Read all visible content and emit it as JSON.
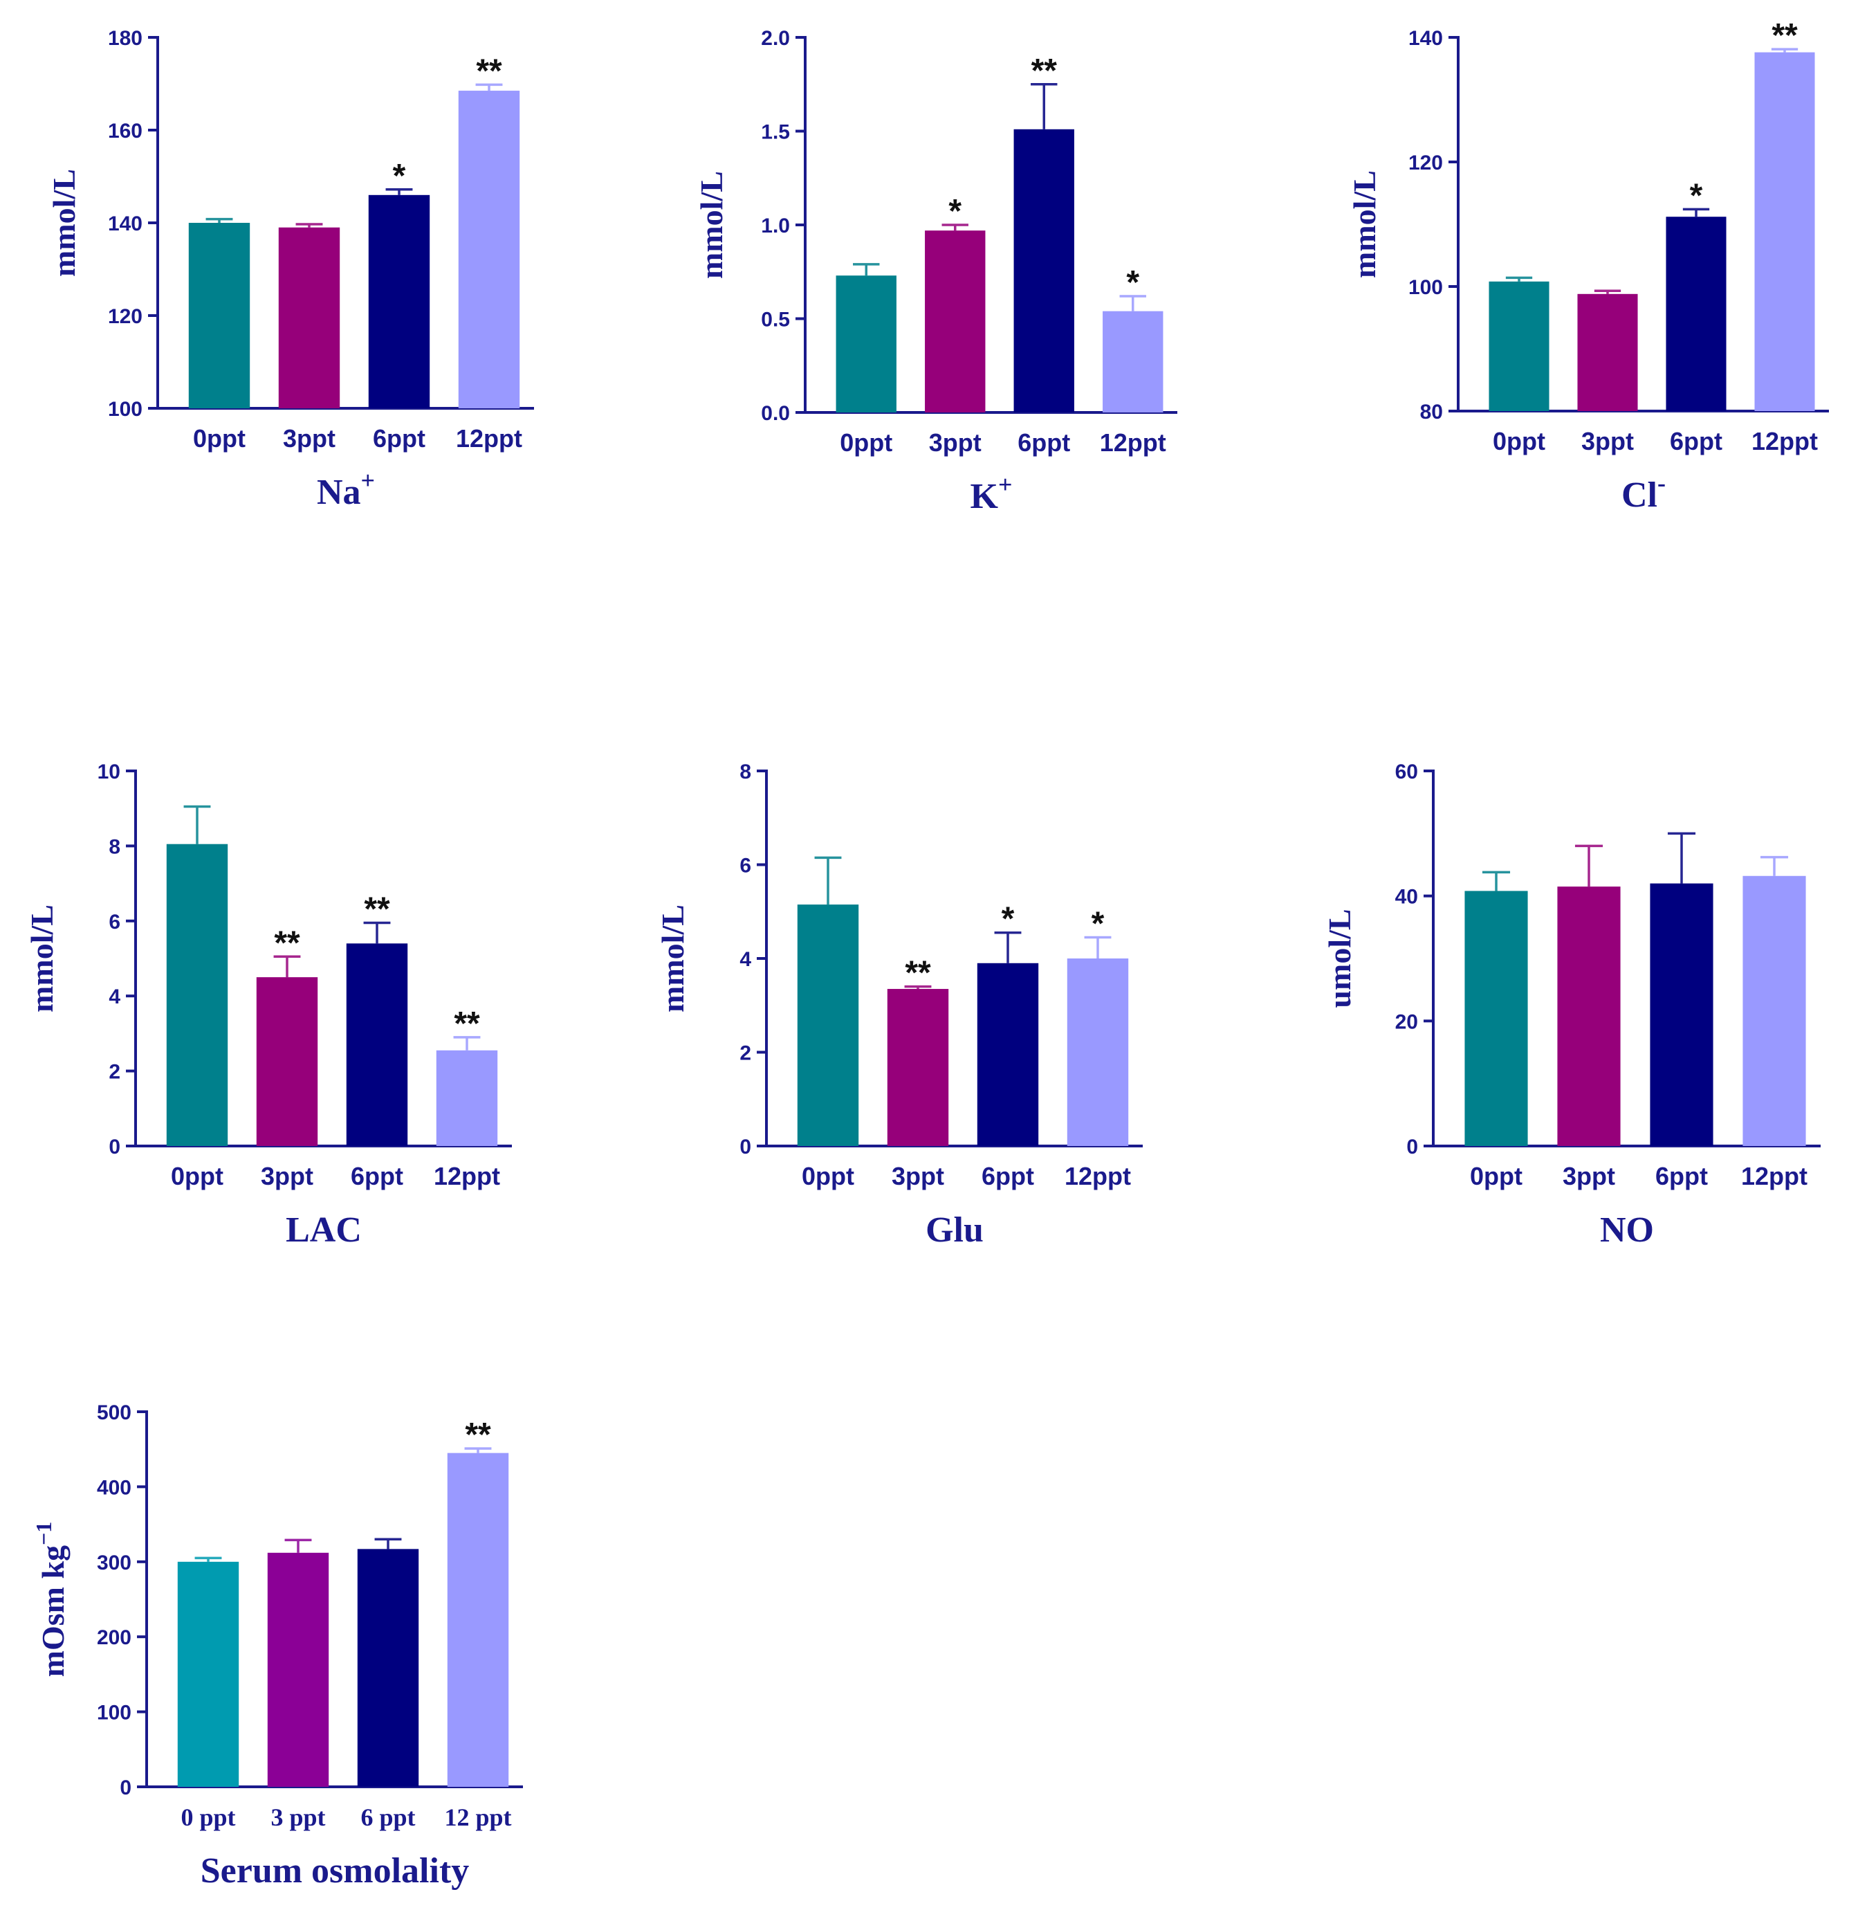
{
  "chart_data": [
    {
      "type": "bar",
      "xlabel": "Na",
      "xlabel_sup": "+",
      "ylabel": "mmol/L",
      "ylim": [
        100,
        180
      ],
      "yticks": [
        100,
        120,
        140,
        160,
        180
      ],
      "ytick_labels": [
        "100",
        "120",
        "140",
        "160",
        "180"
      ],
      "categories": [
        "0ppt",
        "3ppt",
        "6ppt",
        "12ppt"
      ],
      "values": [
        140,
        139,
        146,
        168.5
      ],
      "errors": [
        0.8,
        0.7,
        1.2,
        1.3
      ],
      "significance": [
        "",
        "",
        "*",
        "**"
      ],
      "colors": [
        "#00808c",
        "#96007a",
        "#00007f",
        "#9999ff"
      ]
    },
    {
      "type": "bar",
      "xlabel": "K",
      "xlabel_sup": "+",
      "ylabel": "mmol/L",
      "ylim": [
        0,
        2
      ],
      "yticks": [
        0,
        0.5,
        1,
        1.5,
        2
      ],
      "ytick_labels": [
        "0.0",
        "0.5",
        "1.0",
        "1.5",
        "2.0"
      ],
      "categories": [
        "0ppt",
        "3ppt",
        "6ppt",
        "12ppt"
      ],
      "values": [
        0.73,
        0.97,
        1.51,
        0.54
      ],
      "errors": [
        0.06,
        0.03,
        0.24,
        0.08
      ],
      "significance": [
        "",
        "*",
        "**",
        "*"
      ],
      "colors": [
        "#00808c",
        "#96007a",
        "#00007f",
        "#9999ff"
      ]
    },
    {
      "type": "bar",
      "xlabel": "Cl",
      "xlabel_sup": "-",
      "ylabel": "mmol/L",
      "ylim": [
        80,
        140
      ],
      "yticks": [
        80,
        100,
        120,
        140
      ],
      "ytick_labels": [
        "80",
        "100",
        "120",
        "140"
      ],
      "categories": [
        "0ppt",
        "3ppt",
        "6ppt",
        "12ppt"
      ],
      "values": [
        100.8,
        98.8,
        111.2,
        137.6
      ],
      "errors": [
        0.6,
        0.5,
        1.2,
        0.5
      ],
      "significance": [
        "",
        "",
        "*",
        "**"
      ],
      "colors": [
        "#00808c",
        "#96007a",
        "#00007f",
        "#9999ff"
      ]
    },
    {
      "type": "bar",
      "xlabel": "LAC",
      "xlabel_sup": "",
      "ylabel": "mmol/L",
      "ylim": [
        0,
        10
      ],
      "yticks": [
        0,
        2,
        4,
        6,
        8,
        10
      ],
      "ytick_labels": [
        "0",
        "2",
        "4",
        "6",
        "8",
        "10"
      ],
      "categories": [
        "0ppt",
        "3ppt",
        "6ppt",
        "12ppt"
      ],
      "values": [
        8.05,
        4.5,
        5.4,
        2.55
      ],
      "errors": [
        1.0,
        0.55,
        0.55,
        0.35
      ],
      "significance": [
        "",
        "**",
        "**",
        "**"
      ],
      "colors": [
        "#00808c",
        "#96007a",
        "#00007f",
        "#9999ff"
      ]
    },
    {
      "type": "bar",
      "xlabel": "Glu",
      "xlabel_sup": "",
      "ylabel": "mmol/L",
      "ylim": [
        0,
        8
      ],
      "yticks": [
        0,
        2,
        4,
        6,
        8
      ],
      "ytick_labels": [
        "0",
        "2",
        "4",
        "6",
        "8"
      ],
      "categories": [
        "0ppt",
        "3ppt",
        "6ppt",
        "12ppt"
      ],
      "values": [
        5.15,
        3.35,
        3.9,
        4.0
      ],
      "errors": [
        1.0,
        0.05,
        0.65,
        0.45
      ],
      "significance": [
        "",
        "**",
        "*",
        "*"
      ],
      "colors": [
        "#00808c",
        "#96007a",
        "#00007f",
        "#9999ff"
      ]
    },
    {
      "type": "bar",
      "xlabel": "NO",
      "xlabel_sup": "",
      "ylabel": "umol/L",
      "ylim": [
        0,
        60
      ],
      "yticks": [
        0,
        20,
        40,
        60
      ],
      "ytick_labels": [
        "0",
        "20",
        "40",
        "60"
      ],
      "categories": [
        "0ppt",
        "3ppt",
        "6ppt",
        "12ppt"
      ],
      "values": [
        40.8,
        41.5,
        42,
        43.2
      ],
      "errors": [
        3.0,
        6.5,
        8.0,
        3.0
      ],
      "significance": [
        "",
        "",
        "",
        ""
      ],
      "colors": [
        "#00808c",
        "#96007a",
        "#00007f",
        "#9999ff"
      ]
    },
    {
      "type": "bar",
      "xlabel": "Serum osmolality",
      "xlabel_sup": "",
      "ylabel": "mOsm kg",
      "ylabel_sup": "−1",
      "ylim": [
        0,
        500
      ],
      "yticks": [
        0,
        100,
        200,
        300,
        400,
        500
      ],
      "ytick_labels": [
        "0",
        "100",
        "200",
        "300",
        "400",
        "500"
      ],
      "categories": [
        "0 ppt",
        "3 ppt",
        "6 ppt",
        "12 ppt"
      ],
      "values": [
        300,
        312,
        317,
        445
      ],
      "errors": [
        5,
        17,
        13,
        6
      ],
      "significance": [
        "",
        "",
        "",
        "**"
      ],
      "colors": [
        "#009bb0",
        "#8b0096",
        "#00007f",
        "#9999ff"
      ]
    }
  ]
}
